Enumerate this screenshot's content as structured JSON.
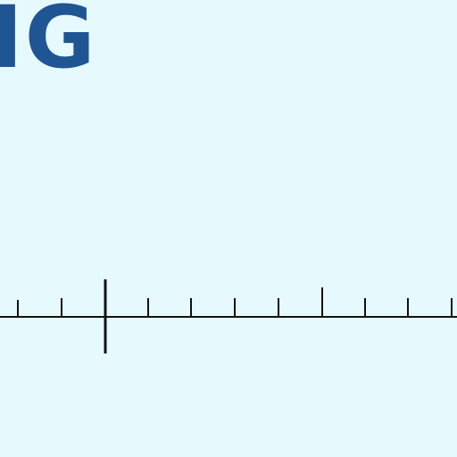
{
  "title_fragment": "IG",
  "colors": {
    "background": "#e6fafe",
    "title": "#1f5592",
    "ruler": "#111111"
  }
}
